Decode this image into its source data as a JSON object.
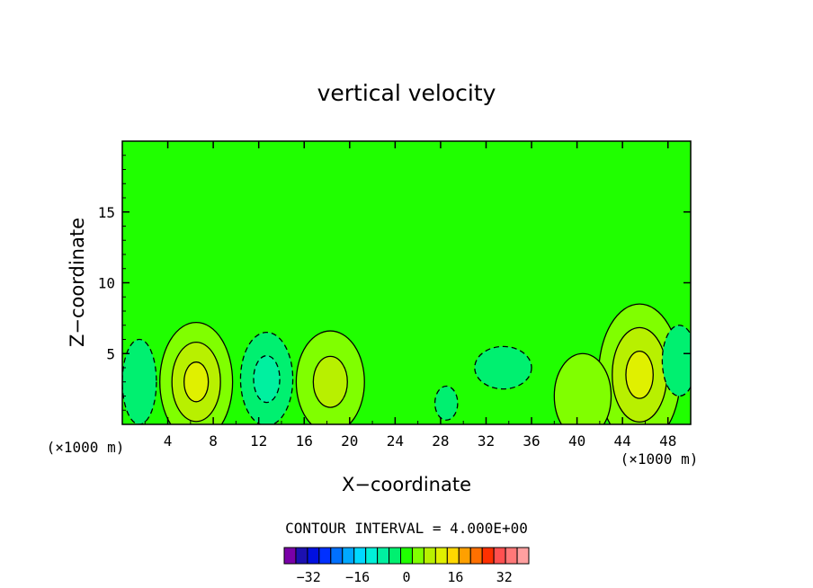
{
  "chart_data": {
    "type": "heatmap",
    "title": "vertical velocity",
    "xlabel": "X−coordinate",
    "ylabel": "Z−coordinate",
    "x_unit_left": "(×1000 m)",
    "x_unit_right": "(×1000 m)",
    "xlim": [
      0,
      50
    ],
    "ylim": [
      0,
      20
    ],
    "x_ticks": [
      4,
      8,
      12,
      16,
      20,
      24,
      28,
      32,
      36,
      40,
      44,
      48
    ],
    "x_tick_labels": [
      "4",
      "8",
      "12",
      "16",
      "20",
      "24",
      "28",
      "32",
      "36",
      "40",
      "44",
      "48"
    ],
    "y_ticks": [
      5,
      10,
      15
    ],
    "y_tick_labels": [
      "5",
      "10",
      "15"
    ],
    "contour_interval_text": "CONTOUR INTERVAL = 4.000E+00",
    "colorbar": {
      "levels": [
        -40,
        -36,
        -32,
        -28,
        -24,
        -20,
        -16,
        -12,
        -8,
        -4,
        0,
        4,
        8,
        12,
        16,
        20,
        24,
        28,
        32,
        36,
        40
      ],
      "colors": [
        "#7a00a8",
        "#1c10b0",
        "#0010e0",
        "#0030ff",
        "#0070ff",
        "#00a8ff",
        "#00d8ff",
        "#00f0d8",
        "#00f0a0",
        "#00f070",
        "#20ff00",
        "#80ff00",
        "#b8f000",
        "#e0f000",
        "#ffd800",
        "#ffa000",
        "#ff7000",
        "#ff3000",
        "#ff5050",
        "#ff7878",
        "#ffa0a0"
      ],
      "tick_values": [
        -32,
        -16,
        0,
        16,
        32
      ],
      "tick_labels": [
        "−32",
        "−16",
        "0",
        "16",
        "32"
      ]
    },
    "features": [
      {
        "kind": "updraft",
        "center": [
          6.5,
          3.0
        ],
        "rx": 3.2,
        "rz": 4.2,
        "peak": 12
      },
      {
        "kind": "updraft",
        "center": [
          18.3,
          3.0
        ],
        "rx": 3.0,
        "rz": 3.6,
        "peak": 8
      },
      {
        "kind": "updraft",
        "center": [
          45.5,
          3.5
        ],
        "rx": 3.6,
        "rz": 5.0,
        "peak": 12
      },
      {
        "kind": "updraft",
        "center": [
          40.5,
          2.0
        ],
        "rx": 2.5,
        "rz": 3.0,
        "peak": 4
      },
      {
        "kind": "downdraft",
        "center": [
          1.5,
          3.0
        ],
        "rx": 1.5,
        "rz": 3.0,
        "peak": -4
      },
      {
        "kind": "downdraft",
        "center": [
          12.7,
          3.2
        ],
        "rx": 2.3,
        "rz": 3.3,
        "peak": -6
      },
      {
        "kind": "downdraft",
        "center": [
          33.5,
          4.0
        ],
        "rx": 2.5,
        "rz": 1.5,
        "peak": -4
      },
      {
        "kind": "downdraft",
        "center": [
          28.5,
          1.5
        ],
        "rx": 1.0,
        "rz": 1.2,
        "peak": -4
      },
      {
        "kind": "downdraft",
        "center": [
          49.0,
          4.5
        ],
        "rx": 1.5,
        "rz": 2.5,
        "peak": -4
      }
    ]
  }
}
